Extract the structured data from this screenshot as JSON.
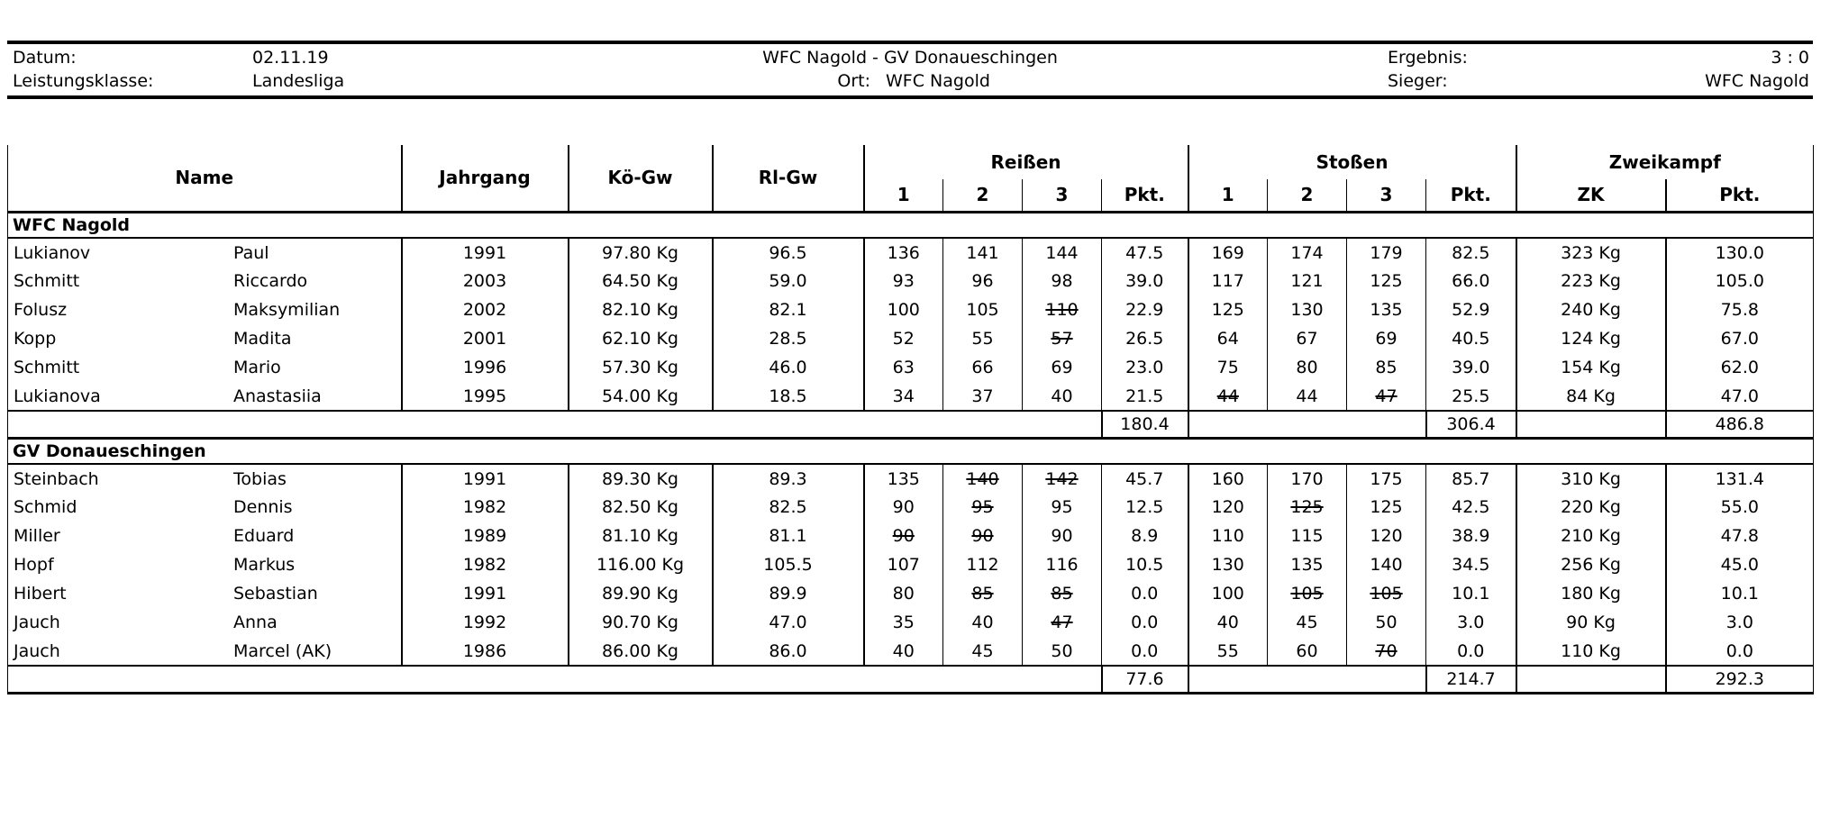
{
  "info": {
    "datum_label": "Datum:",
    "datum_value": "02.11.19",
    "leistungsklasse_label": "Leistungsklasse:",
    "leistungsklasse_value": "Landesliga",
    "match_title": "WFC Nagold - GV Donaueschingen",
    "ort_label": "Ort:",
    "ort_value": "WFC Nagold",
    "ergebnis_label": "Ergebnis:",
    "ergebnis_value": "3 : 0",
    "sieger_label": "Sieger:",
    "sieger_value": "WFC Nagold"
  },
  "table": {
    "headers": {
      "name": "Name",
      "jahrgang": "Jahrgang",
      "koegw": "Kö-Gw",
      "rlgw": "Rl-Gw",
      "reissen": "Reißen",
      "stossen": "Stoßen",
      "zweikampf": "Zweikampf",
      "attempt1": "1",
      "attempt2": "2",
      "attempt3": "3",
      "pkt": "Pkt.",
      "zk": "ZK"
    },
    "teams": [
      {
        "name": "WFC Nagold",
        "rows": [
          {
            "last": "Lukianov",
            "first": "Paul",
            "jahrgang": "1991",
            "koegw": "97.80 Kg",
            "rlgw": "96.5",
            "r1": "136",
            "r2": "141",
            "r3": "144",
            "rpkt": "47.5",
            "s1": "169",
            "s2": "174",
            "s3": "179",
            "spkt": "82.5",
            "zk": "323 Kg",
            "zpkt": "130.0",
            "strikes": []
          },
          {
            "last": "Schmitt",
            "first": "Riccardo",
            "jahrgang": "2003",
            "koegw": "64.50 Kg",
            "rlgw": "59.0",
            "r1": "93",
            "r2": "96",
            "r3": "98",
            "rpkt": "39.0",
            "s1": "117",
            "s2": "121",
            "s3": "125",
            "spkt": "66.0",
            "zk": "223 Kg",
            "zpkt": "105.0",
            "strikes": []
          },
          {
            "last": "Folusz",
            "first": "Maksymilian",
            "jahrgang": "2002",
            "koegw": "82.10 Kg",
            "rlgw": "82.1",
            "r1": "100",
            "r2": "105",
            "r3": "110",
            "rpkt": "22.9",
            "s1": "125",
            "s2": "130",
            "s3": "135",
            "spkt": "52.9",
            "zk": "240 Kg",
            "zpkt": "75.8",
            "strikes": [
              "r3"
            ]
          },
          {
            "last": "Kopp",
            "first": "Madita",
            "jahrgang": "2001",
            "koegw": "62.10 Kg",
            "rlgw": "28.5",
            "r1": "52",
            "r2": "55",
            "r3": "57",
            "rpkt": "26.5",
            "s1": "64",
            "s2": "67",
            "s3": "69",
            "spkt": "40.5",
            "zk": "124 Kg",
            "zpkt": "67.0",
            "strikes": [
              "r3"
            ]
          },
          {
            "last": "Schmitt",
            "first": "Mario",
            "jahrgang": "1996",
            "koegw": "57.30 Kg",
            "rlgw": "46.0",
            "r1": "63",
            "r2": "66",
            "r3": "69",
            "rpkt": "23.0",
            "s1": "75",
            "s2": "80",
            "s3": "85",
            "spkt": "39.0",
            "zk": "154 Kg",
            "zpkt": "62.0",
            "strikes": []
          },
          {
            "last": "Lukianova",
            "first": "Anastasiia",
            "jahrgang": "1995",
            "koegw": "54.00 Kg",
            "rlgw": "18.5",
            "r1": "34",
            "r2": "37",
            "r3": "40",
            "rpkt": "21.5",
            "s1": "44",
            "s2": "44",
            "s3": "47",
            "spkt": "25.5",
            "zk": "84 Kg",
            "zpkt": "47.0",
            "strikes": [
              "s1",
              "s3"
            ]
          }
        ],
        "totals": {
          "rpkt": "180.4",
          "spkt": "306.4",
          "zpkt": "486.8"
        }
      },
      {
        "name": "GV Donaueschingen",
        "rows": [
          {
            "last": "Steinbach",
            "first": "Tobias",
            "jahrgang": "1991",
            "koegw": "89.30 Kg",
            "rlgw": "89.3",
            "r1": "135",
            "r2": "140",
            "r3": "142",
            "rpkt": "45.7",
            "s1": "160",
            "s2": "170",
            "s3": "175",
            "spkt": "85.7",
            "zk": "310 Kg",
            "zpkt": "131.4",
            "strikes": [
              "r2",
              "r3"
            ]
          },
          {
            "last": "Schmid",
            "first": "Dennis",
            "jahrgang": "1982",
            "koegw": "82.50 Kg",
            "rlgw": "82.5",
            "r1": "90",
            "r2": "95",
            "r3": "95",
            "rpkt": "12.5",
            "s1": "120",
            "s2": "125",
            "s3": "125",
            "spkt": "42.5",
            "zk": "220 Kg",
            "zpkt": "55.0",
            "strikes": [
              "r2",
              "s2"
            ]
          },
          {
            "last": "Miller",
            "first": "Eduard",
            "jahrgang": "1989",
            "koegw": "81.10 Kg",
            "rlgw": "81.1",
            "r1": "90",
            "r2": "90",
            "r3": "90",
            "rpkt": "8.9",
            "s1": "110",
            "s2": "115",
            "s3": "120",
            "spkt": "38.9",
            "zk": "210 Kg",
            "zpkt": "47.8",
            "strikes": [
              "r1",
              "r2"
            ]
          },
          {
            "last": "Hopf",
            "first": "Markus",
            "jahrgang": "1982",
            "koegw": "116.00 Kg",
            "rlgw": "105.5",
            "r1": "107",
            "r2": "112",
            "r3": "116",
            "rpkt": "10.5",
            "s1": "130",
            "s2": "135",
            "s3": "140",
            "spkt": "34.5",
            "zk": "256 Kg",
            "zpkt": "45.0",
            "strikes": []
          },
          {
            "last": "Hibert",
            "first": "Sebastian",
            "jahrgang": "1991",
            "koegw": "89.90 Kg",
            "rlgw": "89.9",
            "r1": "80",
            "r2": "85",
            "r3": "85",
            "rpkt": "0.0",
            "s1": "100",
            "s2": "105",
            "s3": "105",
            "spkt": "10.1",
            "zk": "180 Kg",
            "zpkt": "10.1",
            "strikes": [
              "r2",
              "r3",
              "s2",
              "s3"
            ]
          },
          {
            "last": "Jauch",
            "first": "Anna",
            "jahrgang": "1992",
            "koegw": "90.70 Kg",
            "rlgw": "47.0",
            "r1": "35",
            "r2": "40",
            "r3": "47",
            "rpkt": "0.0",
            "s1": "40",
            "s2": "45",
            "s3": "50",
            "spkt": "3.0",
            "zk": "90 Kg",
            "zpkt": "3.0",
            "strikes": [
              "r3"
            ]
          },
          {
            "last": "Jauch",
            "first": "Marcel (AK)",
            "jahrgang": "1986",
            "koegw": "86.00 Kg",
            "rlgw": "86.0",
            "r1": "40",
            "r2": "45",
            "r3": "50",
            "rpkt": "0.0",
            "s1": "55",
            "s2": "60",
            "s3": "70",
            "spkt": "0.0",
            "zk": "110 Kg",
            "zpkt": "0.0",
            "strikes": [
              "s3"
            ]
          }
        ],
        "totals": {
          "rpkt": "77.6",
          "spkt": "214.7",
          "zpkt": "292.3"
        }
      }
    ]
  }
}
